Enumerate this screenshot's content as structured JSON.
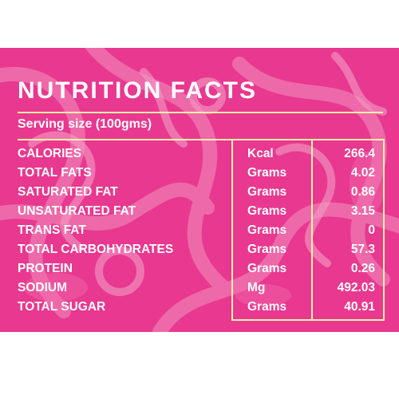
{
  "title": "NUTRITION FACTS",
  "serving_size": "Serving size (100gms)",
  "colors": {
    "panel": "#e8388f",
    "text": "#ffffff",
    "rule": "#fff1a8"
  },
  "rows": [
    {
      "nutrient": "CALORIES",
      "unit": "Kcal",
      "value": "266.4"
    },
    {
      "nutrient": "TOTAL FATS",
      "unit": "Grams",
      "value": "4.02"
    },
    {
      "nutrient": "SATURATED FAT",
      "unit": "Grams",
      "value": "0.86"
    },
    {
      "nutrient": "UNSATURATED FAT",
      "unit": "Grams",
      "value": "3.15"
    },
    {
      "nutrient": "TRANS FAT",
      "unit": "Grams",
      "value": "0"
    },
    {
      "nutrient": "TOTAL CARBOHYDRATES",
      "unit": "Grams",
      "value": "57.3"
    },
    {
      "nutrient": "PROTEIN",
      "unit": "Grams",
      "value": "0.26"
    },
    {
      "nutrient": "SODIUM",
      "unit": "Mg",
      "value": "492.03"
    },
    {
      "nutrient": "TOTAL SUGAR",
      "unit": "Grams",
      "value": "40.91"
    }
  ]
}
